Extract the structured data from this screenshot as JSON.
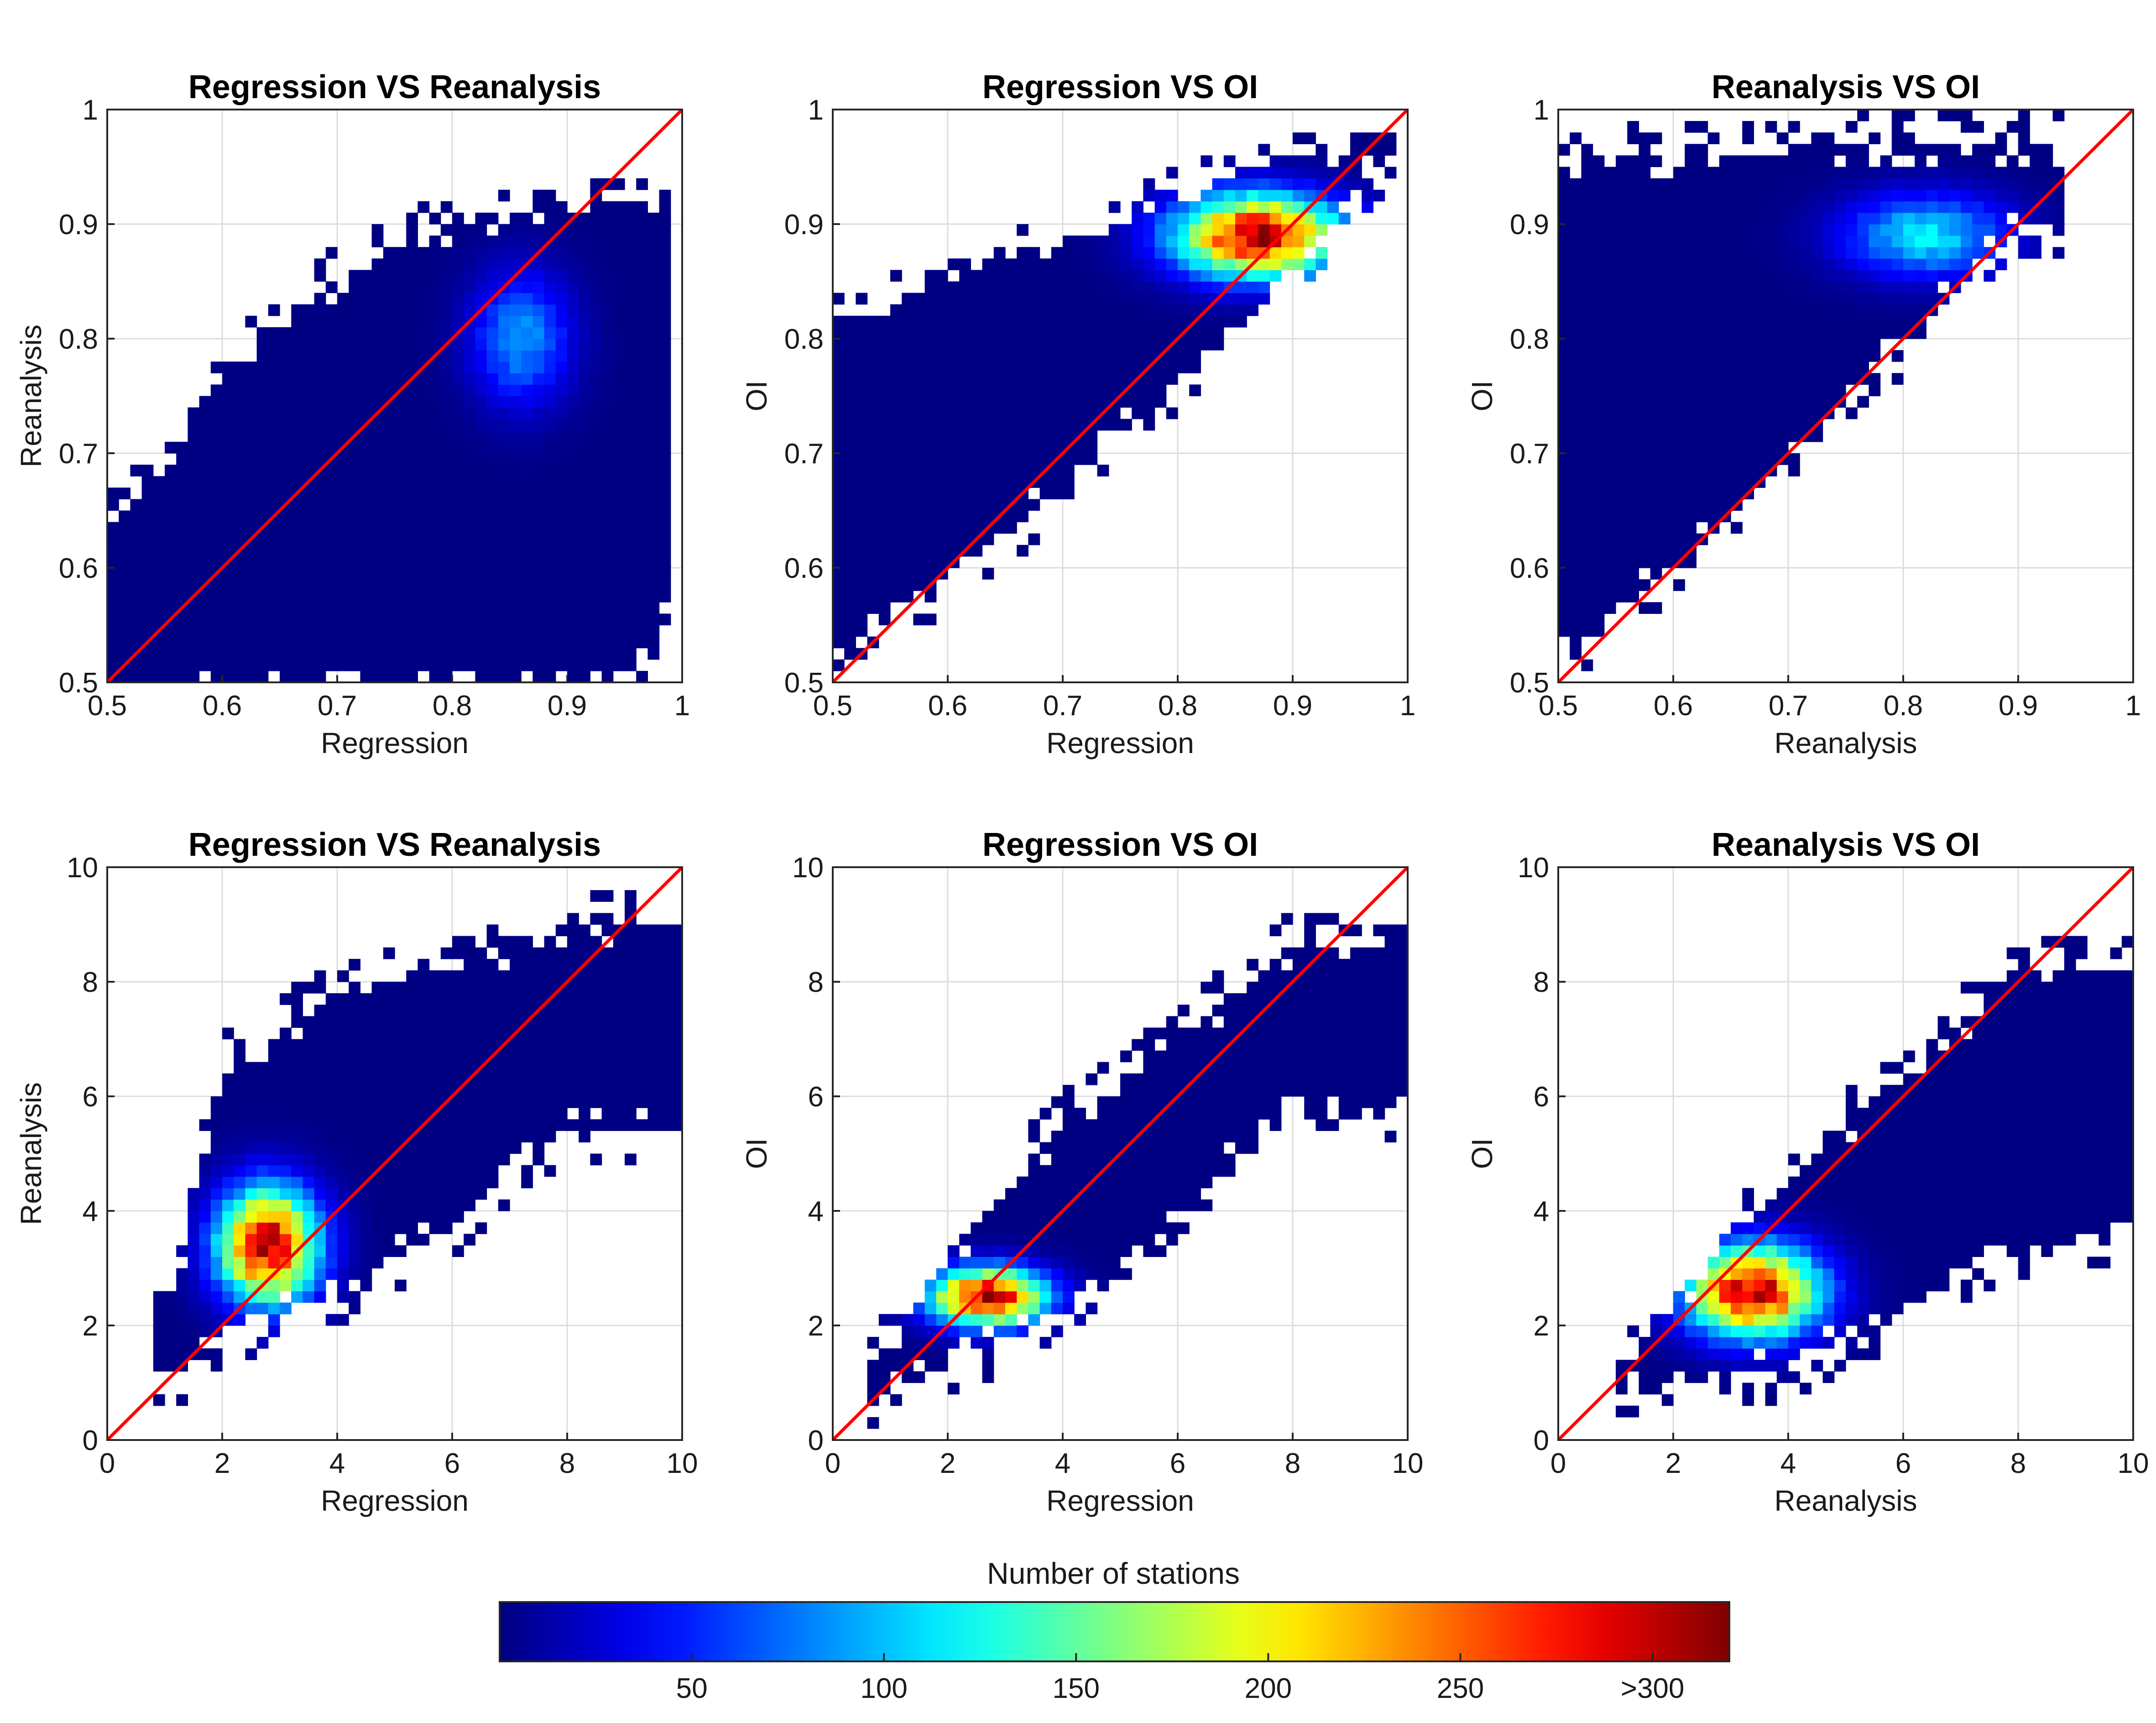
{
  "figure": {
    "colorbar": {
      "title": "Number of stations",
      "colormap": "jet",
      "range": [
        0,
        320
      ],
      "ticks": [
        {
          "value": 50,
          "label": "50"
        },
        {
          "value": 100,
          "label": "100"
        },
        {
          "value": 150,
          "label": "150"
        },
        {
          "value": 200,
          "label": "200"
        },
        {
          "value": 250,
          "label": "250"
        },
        {
          "value": 300,
          "label": ">300"
        }
      ]
    },
    "identity_line_color": "#ff0000",
    "grid": true
  },
  "chart_data": [
    {
      "type": "heatmap",
      "title": "Regression VS Reanalysis",
      "xlabel": "Regression",
      "ylabel": "Reanalysis",
      "xlim": [
        0.5,
        1
      ],
      "ylim": [
        0.5,
        1
      ],
      "xticks": [
        "0.5",
        "0.6",
        "0.7",
        "0.8",
        "0.9",
        "1"
      ],
      "yticks": [
        "0.5",
        "0.6",
        "0.7",
        "0.8",
        "0.9",
        "1"
      ],
      "reference_line": "y = x",
      "density": {
        "bin_width": 0.01,
        "max_count": 85,
        "occupied_region": {
          "x": [
            0.5,
            0.98
          ],
          "y": [
            0.5,
            0.92
          ],
          "y_min_at_x": [
            [
              0.5,
              0.5
            ],
            [
              0.95,
              0.5
            ],
            [
              0.98,
              0.55
            ]
          ],
          "y_max_at_x": [
            [
              0.5,
              0.63
            ],
            [
              0.6,
              0.77
            ],
            [
              0.7,
              0.85
            ],
            [
              0.8,
              0.9
            ],
            [
              0.9,
              0.92
            ]
          ]
        },
        "peak_clusters": [
          {
            "x": 0.86,
            "y": 0.8,
            "count": 85,
            "spread": [
              0.03,
              0.04
            ]
          }
        ]
      }
    },
    {
      "type": "heatmap",
      "title": "Regression VS OI",
      "xlabel": "Regression",
      "ylabel": "OI",
      "xlim": [
        0.5,
        1
      ],
      "ylim": [
        0.5,
        1
      ],
      "xticks": [
        "0.5",
        "0.6",
        "0.7",
        "0.8",
        "0.9",
        "1"
      ],
      "yticks": [
        "0.5",
        "0.6",
        "0.7",
        "0.8",
        "0.9",
        "1"
      ],
      "reference_line": "y = x",
      "density": {
        "bin_width": 0.01,
        "max_count": 300,
        "occupied_region": {
          "x": [
            0.5,
            0.98
          ],
          "y": [
            0.52,
            0.98
          ],
          "y_min_at_x": [
            [
              0.5,
              0.52
            ],
            [
              0.7,
              0.67
            ],
            [
              0.8,
              0.77
            ],
            [
              0.9,
              0.86
            ],
            [
              0.97,
              0.95
            ]
          ],
          "y_max_at_x": [
            [
              0.5,
              0.81
            ],
            [
              0.6,
              0.85
            ],
            [
              0.7,
              0.89
            ],
            [
              0.8,
              0.92
            ],
            [
              0.9,
              0.96
            ],
            [
              0.97,
              0.98
            ]
          ]
        },
        "peak_clusters": [
          {
            "x": 0.87,
            "y": 0.89,
            "count": 300,
            "spread": [
              0.05,
              0.025
            ]
          }
        ]
      }
    },
    {
      "type": "heatmap",
      "title": "Reanalysis VS OI",
      "xlabel": "Reanalysis",
      "ylabel": "OI",
      "xlim": [
        0.5,
        1
      ],
      "ylim": [
        0.5,
        1
      ],
      "xticks": [
        "0.5",
        "0.6",
        "0.7",
        "0.8",
        "0.9",
        "1"
      ],
      "yticks": [
        "0.5",
        "0.6",
        "0.7",
        "0.8",
        "0.9",
        "1"
      ],
      "reference_line": "y = x",
      "density": {
        "bin_width": 0.01,
        "max_count": 110,
        "occupied_region": {
          "x": [
            0.51,
            0.93
          ],
          "y": [
            0.53,
            0.97
          ],
          "y_min_at_x": [
            [
              0.51,
              0.53
            ],
            [
              0.6,
              0.6
            ],
            [
              0.7,
              0.7
            ],
            [
              0.8,
              0.8
            ],
            [
              0.9,
              0.9
            ]
          ],
          "y_max_at_x": [
            [
              0.51,
              0.95
            ],
            [
              0.6,
              0.96
            ],
            [
              0.8,
              0.97
            ],
            [
              0.93,
              0.97
            ]
          ]
        },
        "peak_clusters": [
          {
            "x": 0.82,
            "y": 0.89,
            "count": 110,
            "spread": [
              0.05,
              0.025
            ]
          }
        ]
      }
    },
    {
      "type": "heatmap",
      "title": "Regression VS Reanalysis",
      "xlabel": "Regression",
      "ylabel": "Reanalysis",
      "xlim": [
        0,
        10
      ],
      "ylim": [
        0,
        10
      ],
      "xticks": [
        "0",
        "2",
        "4",
        "6",
        "8",
        "10"
      ],
      "yticks": [
        "0",
        "2",
        "4",
        "6",
        "8",
        "10"
      ],
      "reference_line": "y = x",
      "density": {
        "bin_width": 0.2,
        "max_count": 300,
        "occupied_region": {
          "x": [
            1.0,
            9.8
          ],
          "y": [
            1.2,
            10.0
          ],
          "y_min_at_x": [
            [
              1.2,
              1.2
            ],
            [
              2.0,
              1.9
            ],
            [
              4.0,
              2.6
            ],
            [
              6.0,
              3.8
            ],
            [
              8.0,
              5.5
            ]
          ],
          "y_max_at_x": [
            [
              1.2,
              2.5
            ],
            [
              2.0,
              6.5
            ],
            [
              4.0,
              7.8
            ],
            [
              6.0,
              8.2
            ],
            [
              8.0,
              9.0
            ]
          ]
        },
        "peak_clusters": [
          {
            "x": 2.8,
            "y": 3.4,
            "count": 300,
            "spread": [
              0.6,
              0.7
            ]
          }
        ]
      }
    },
    {
      "type": "heatmap",
      "title": "Regression VS OI",
      "xlabel": "Regression",
      "ylabel": "OI",
      "xlim": [
        0,
        10
      ],
      "ylim": [
        0,
        10
      ],
      "xticks": [
        "0",
        "2",
        "4",
        "6",
        "8",
        "10"
      ],
      "yticks": [
        "0",
        "2",
        "4",
        "6",
        "8",
        "10"
      ],
      "reference_line": "y = x",
      "density": {
        "bin_width": 0.2,
        "max_count": 300,
        "occupied_region": {
          "x": [
            0.8,
            9.8
          ],
          "y": [
            0.8,
            9.8
          ],
          "y_min_at_x": [
            [
              0.8,
              0.8
            ],
            [
              2.0,
              1.3
            ],
            [
              4.0,
              2.3
            ],
            [
              6.0,
              4.0
            ],
            [
              8.0,
              5.8
            ]
          ],
          "y_max_at_x": [
            [
              0.8,
              1.4
            ],
            [
              2.0,
              3.2
            ],
            [
              4.0,
              5.5
            ],
            [
              6.0,
              7.0
            ],
            [
              8.0,
              8.6
            ]
          ]
        },
        "peak_clusters": [
          {
            "x": 2.7,
            "y": 2.5,
            "count": 300,
            "spread": [
              0.7,
              0.35
            ]
          }
        ]
      }
    },
    {
      "type": "heatmap",
      "title": "Reanalysis VS OI",
      "xlabel": "Reanalysis",
      "ylabel": "OI",
      "xlim": [
        0,
        10
      ],
      "ylim": [
        0,
        10
      ],
      "xticks": [
        "0",
        "2",
        "4",
        "6",
        "8",
        "10"
      ],
      "yticks": [
        "0",
        "2",
        "4",
        "6",
        "8",
        "10"
      ],
      "reference_line": "y = x",
      "density": {
        "bin_width": 0.2,
        "max_count": 300,
        "occupied_region": {
          "x": [
            1.2,
            10.0
          ],
          "y": [
            0.6,
            9.2
          ],
          "y_min_at_x": [
            [
              1.2,
              1.0
            ],
            [
              2.0,
              0.9
            ],
            [
              4.0,
              1.3
            ],
            [
              6.0,
              2.3
            ],
            [
              8.0,
              3.5
            ]
          ],
          "y_max_at_x": [
            [
              1.2,
              1.3
            ],
            [
              2.0,
              2.4
            ],
            [
              4.0,
              4.4
            ],
            [
              6.0,
              6.4
            ],
            [
              8.0,
              8.2
            ]
          ]
        },
        "peak_clusters": [
          {
            "x": 3.4,
            "y": 2.6,
            "count": 300,
            "spread": [
              0.8,
              0.55
            ]
          }
        ]
      }
    }
  ]
}
